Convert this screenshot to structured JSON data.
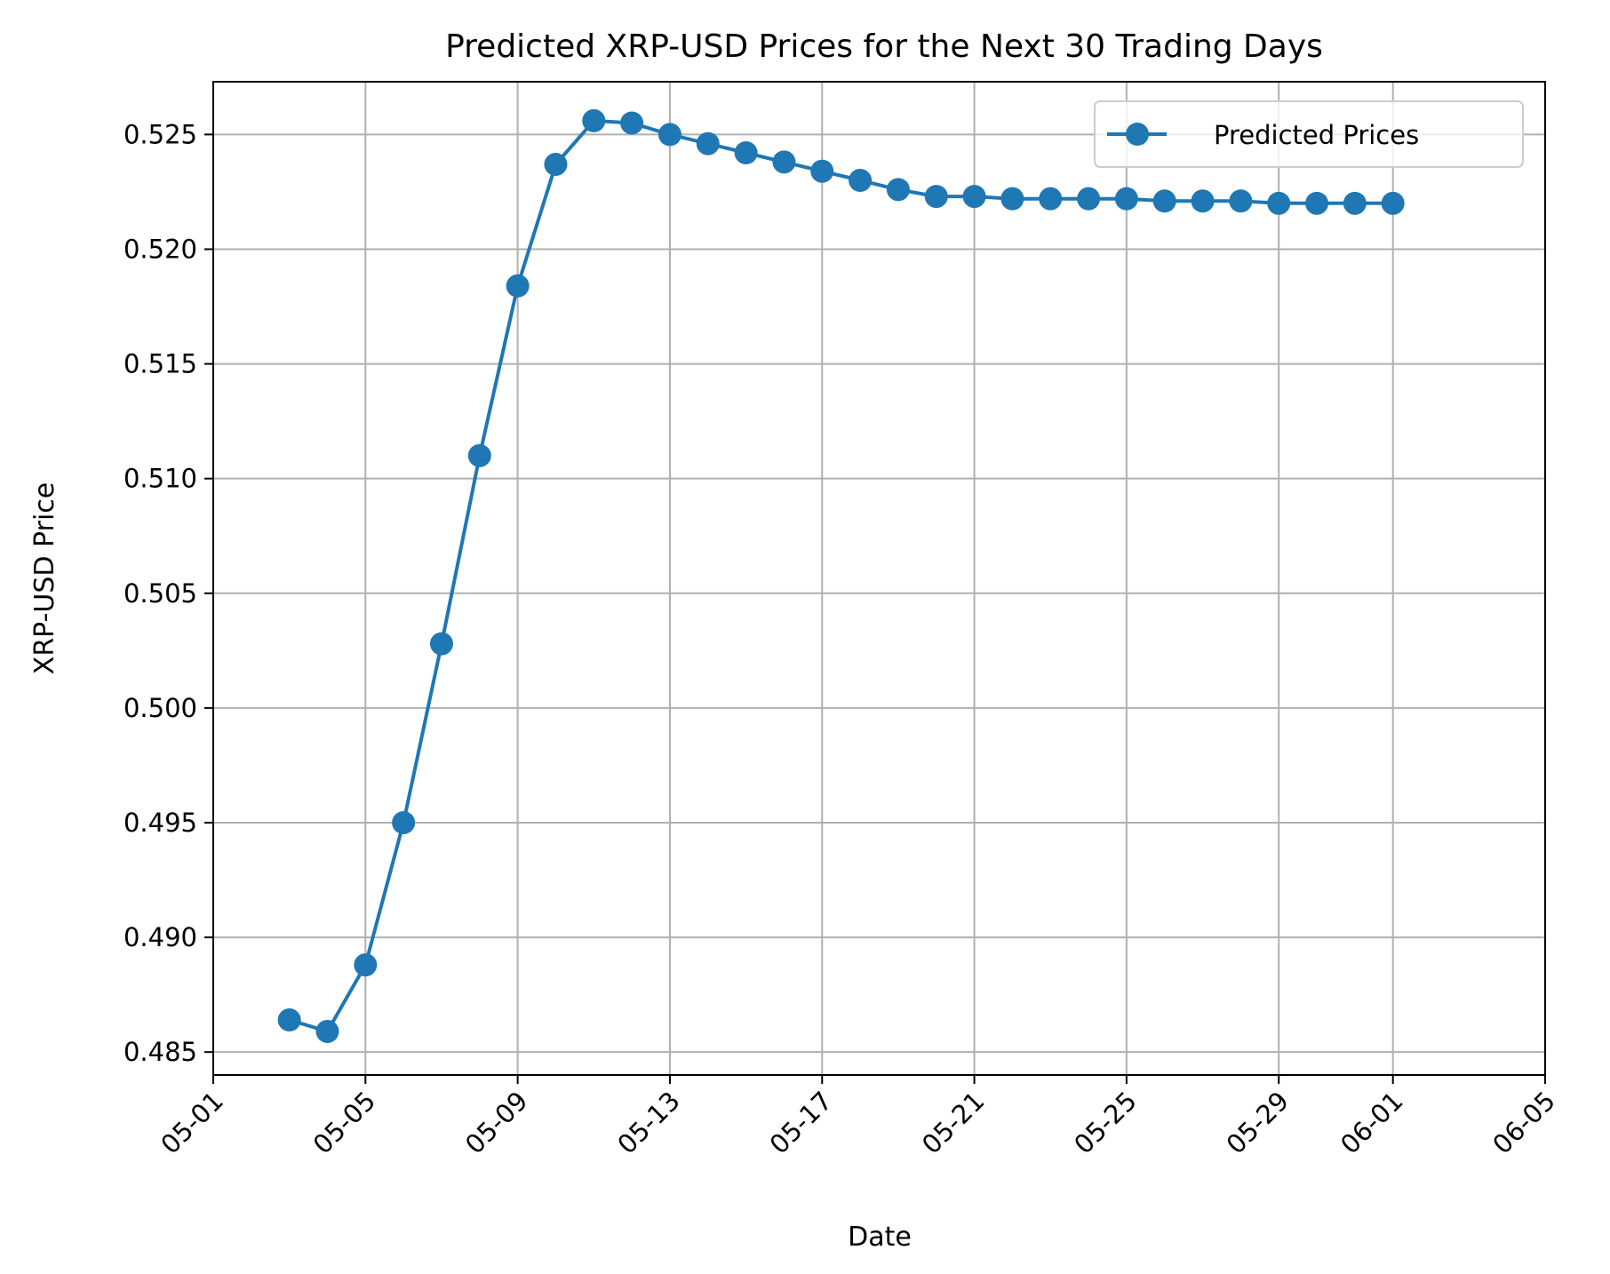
{
  "chart_data": {
    "type": "line",
    "title": "Predicted XRP-USD Prices for the Next 30 Trading Days",
    "xlabel": "Date",
    "ylabel": "XRP-USD Price",
    "grid": true,
    "legend_position": "top-right",
    "x_start_label": "05-03",
    "x_range_days": [
      0,
      35
    ],
    "x_ticks": [
      {
        "day": 0,
        "label": "05-01"
      },
      {
        "day": 4,
        "label": "05-05"
      },
      {
        "day": 8,
        "label": "05-09"
      },
      {
        "day": 12,
        "label": "05-13"
      },
      {
        "day": 16,
        "label": "05-17"
      },
      {
        "day": 20,
        "label": "05-21"
      },
      {
        "day": 24,
        "label": "05-25"
      },
      {
        "day": 28,
        "label": "05-29"
      },
      {
        "day": 31,
        "label": "06-01"
      },
      {
        "day": 35,
        "label": "06-05"
      }
    ],
    "ylim": [
      0.484,
      0.5273
    ],
    "y_ticks": [
      0.485,
      0.49,
      0.495,
      0.5,
      0.505,
      0.51,
      0.515,
      0.52,
      0.525
    ],
    "y_tick_labels": [
      "0.485",
      "0.490",
      "0.495",
      "0.500",
      "0.505",
      "0.510",
      "0.515",
      "0.520",
      "0.525"
    ],
    "series": [
      {
        "name": "Predicted Prices",
        "color": "#1f77b4",
        "marker": "circle",
        "x_days": [
          2,
          3,
          4,
          5,
          6,
          7,
          8,
          9,
          10,
          11,
          12,
          13,
          14,
          15,
          16,
          17,
          18,
          19,
          20,
          21,
          22,
          23,
          24,
          25,
          26,
          27,
          28,
          29,
          30,
          31
        ],
        "values": [
          0.4864,
          0.4859,
          0.4888,
          0.495,
          0.5028,
          0.511,
          0.5184,
          0.5237,
          0.5256,
          0.5255,
          0.525,
          0.5246,
          0.5242,
          0.5238,
          0.5234,
          0.523,
          0.5226,
          0.5223,
          0.5223,
          0.5222,
          0.5222,
          0.5222,
          0.5222,
          0.5221,
          0.5221,
          0.5221,
          0.522,
          0.522,
          0.522,
          0.522
        ]
      }
    ]
  }
}
